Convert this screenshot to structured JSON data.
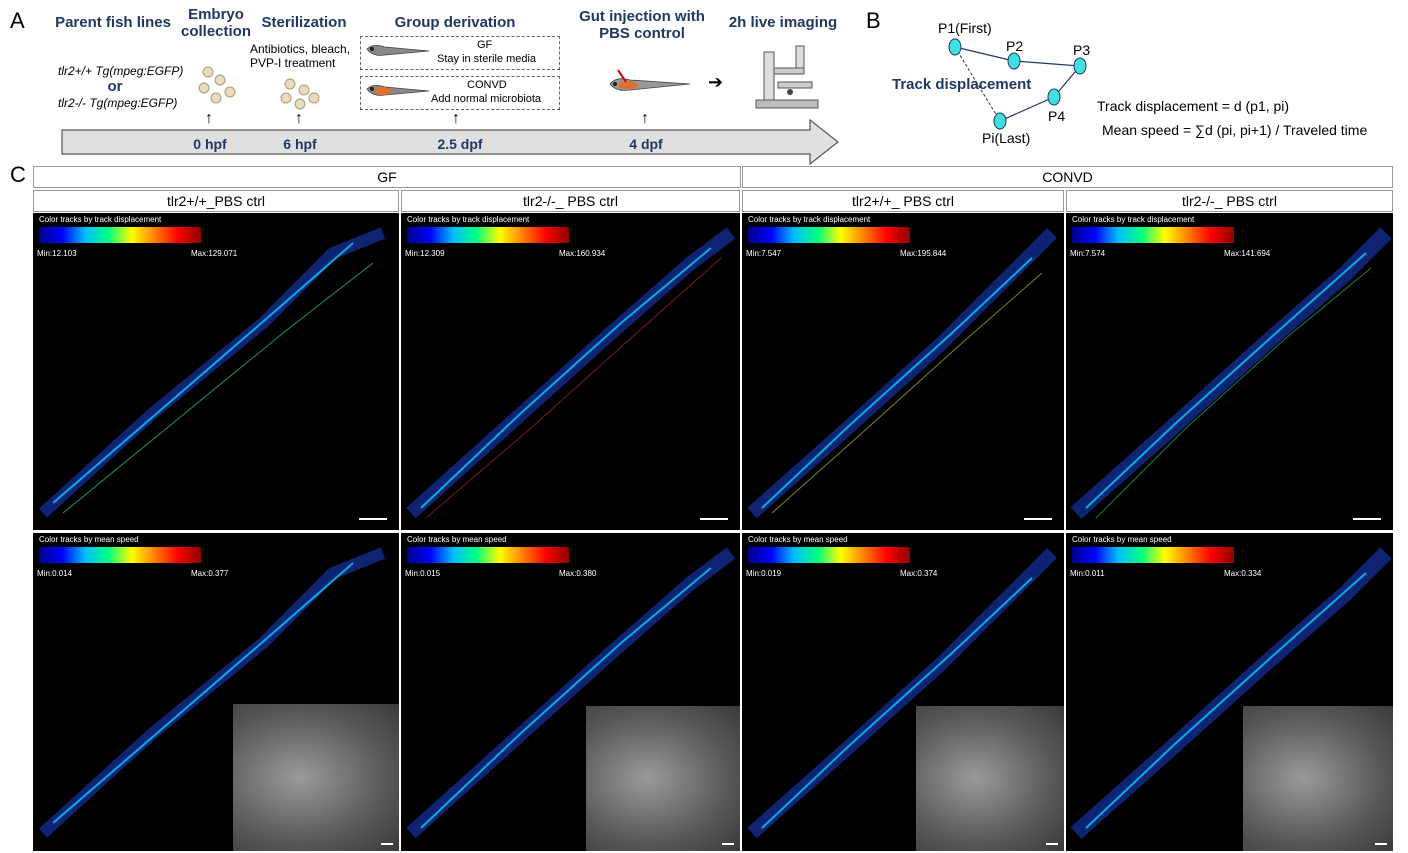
{
  "panel_a": {
    "letter": "A",
    "steps": {
      "parent": "Parent fish lines",
      "embryo": "Embryo collection",
      "sterilization": "Sterilization",
      "group": "Group derivation",
      "gut": "Gut injection with PBS control",
      "imaging": "2h live imaging"
    },
    "lines": {
      "wt": "tlr2+/+ Tg(mpeg:EGFP)",
      "or": "or",
      "ko": "tlr2-/- Tg(mpeg:EGFP)"
    },
    "sterilization_note": "Antibiotics, bleach, PVP-I treatment",
    "gf_box": {
      "title": "GF",
      "desc": "Stay in sterile media"
    },
    "convd_box": {
      "title": "CONVD",
      "desc": "Add normal microbiota"
    },
    "timepoints": [
      "0 hpf",
      "6 hpf",
      "2.5 dpf",
      "4 dpf"
    ]
  },
  "panel_b": {
    "letter": "B",
    "p1": "P1(First)",
    "p2": "P2",
    "p3": "P3",
    "p4": "P4",
    "pi": "Pi(Last)",
    "track_label": "Track displacement",
    "formula1": "Track displacement = d (p1, pi)",
    "formula2": "Mean speed = ∑d (pi, pi+1) / Traveled time"
  },
  "panel_c": {
    "letter": "C",
    "groups": [
      "GF",
      "CONVD"
    ],
    "columns": [
      {
        "label": "tlr2+/+_PBS ctrl",
        "disp_min": "Min:12.103",
        "disp_max": "Max:129.071",
        "speed_min": "Min:0.014",
        "speed_max": "Max:0.377"
      },
      {
        "label": "tlr2-/-_ PBS ctrl",
        "disp_min": "Min:12.309",
        "disp_max": "Max:160.934",
        "speed_min": "Min:0.015",
        "speed_max": "Max:0.380"
      },
      {
        "label": "tlr2+/+_ PBS ctrl",
        "disp_min": "Min:7.547",
        "disp_max": "Max:195.844",
        "speed_min": "Min:0.019",
        "speed_max": "Max:0.374"
      },
      {
        "label": "tlr2-/-_ PBS ctrl",
        "disp_min": "Min:7.574",
        "disp_max": "Max:141.694",
        "speed_min": "Min:0.011",
        "speed_max": "Max:0.334"
      }
    ],
    "disp_title": "Color tracks by track displacement",
    "speed_title": "Color tracks by mean speed"
  }
}
